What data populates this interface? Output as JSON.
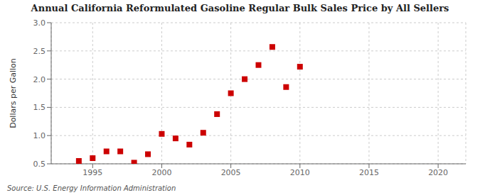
{
  "chart_data": {
    "type": "scatter",
    "title": "Annual California Reformulated Gasoline Regular Bulk Sales Price by All Sellers",
    "ylabel": "Dollars per Gallon",
    "annotation": "Source: U.S. Energy Information Administration",
    "x": [
      1994,
      1995,
      1996,
      1997,
      1998,
      1999,
      2000,
      2001,
      2002,
      2003,
      2004,
      2005,
      2006,
      2007,
      2008,
      2009,
      2010
    ],
    "values": [
      0.55,
      0.6,
      0.72,
      0.72,
      0.52,
      0.67,
      1.03,
      0.95,
      0.84,
      1.05,
      1.38,
      1.75,
      2.0,
      2.25,
      2.57,
      1.86,
      2.22
    ],
    "color": "#cc0000",
    "marker": "square",
    "xlim": [
      1992,
      2022
    ],
    "ylim": [
      0.5,
      3.0
    ],
    "xticks": [
      1995,
      2000,
      2005,
      2010,
      2015,
      2020
    ],
    "yticks": [
      0.5,
      {
        "value": 1.0,
        "label": "1.0"
      },
      1.5,
      {
        "value": 2.0,
        "label": "2.0"
      },
      2.5,
      {
        "value": 3.0,
        "label": "3.0"
      }
    ],
    "grid": true
  }
}
